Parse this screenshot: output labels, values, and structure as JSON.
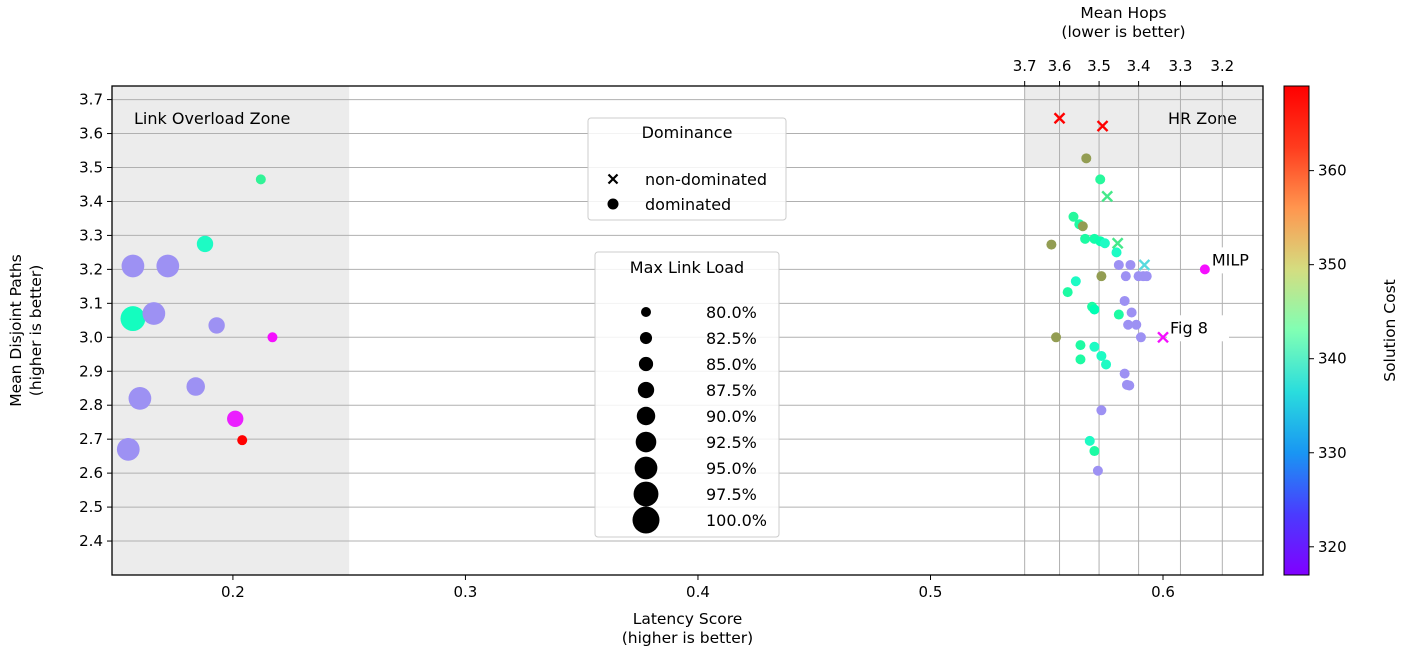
{
  "chart_data": {
    "type": "scatter",
    "xlabel": [
      "Latency Score",
      "(higher is better)"
    ],
    "ylabel": [
      "Mean Disjoint Paths",
      "(higher is better)"
    ],
    "top_axis_label": [
      "Mean Hops",
      "(lower is better)"
    ],
    "colorbar_label": "Solution Cost",
    "xlim": [
      0.148,
      0.643
    ],
    "ylim": [
      2.3,
      3.74
    ],
    "x_ticks": [
      "0.2",
      "0.3",
      "0.4",
      "0.5",
      "0.6"
    ],
    "x_tick_values": [
      0.2,
      0.3,
      0.4,
      0.5,
      0.6
    ],
    "y_ticks": [
      "2.4",
      "2.5",
      "2.6",
      "2.7",
      "2.8",
      "2.9",
      "3.0",
      "3.1",
      "3.2",
      "3.3",
      "3.4",
      "3.5",
      "3.6",
      "3.7"
    ],
    "y_tick_values": [
      2.4,
      2.5,
      2.6,
      2.7,
      2.8,
      2.9,
      3.0,
      3.1,
      3.2,
      3.3,
      3.4,
      3.5,
      3.6,
      3.7
    ],
    "top_ticks": [
      "3.7",
      "3.6",
      "3.5",
      "3.4",
      "3.3",
      "3.2"
    ],
    "top_tick_latency_positions": [
      0.5405,
      0.5555,
      0.5725,
      0.5895,
      0.6075,
      0.6255
    ],
    "colorbar_ticks": [
      "320",
      "330",
      "340",
      "350",
      "360"
    ],
    "colorbar_tick_values": [
      320,
      330,
      340,
      350,
      360
    ],
    "colorbar_range": [
      317,
      369
    ],
    "grid": true,
    "regions": [
      {
        "label": "Link Overload Zone",
        "x_range": [
          0.148,
          0.25
        ],
        "y_range": [
          2.3,
          3.74
        ]
      },
      {
        "label": "HR Zone",
        "x_range": [
          0.5405,
          0.643
        ],
        "y_range": [
          3.5,
          3.74
        ]
      }
    ],
    "dominance_legend": {
      "title": "Dominance",
      "entries": [
        {
          "label": "non-dominated",
          "marker": "x"
        },
        {
          "label": "dominated",
          "marker": "o"
        }
      ]
    },
    "size_legend": {
      "title": "Max Link Load",
      "entries": [
        "80.0%",
        "82.5%",
        "85.0%",
        "87.5%",
        "90.0%",
        "92.5%",
        "95.0%",
        "97.5%",
        "100.0%"
      ],
      "values": [
        80.0,
        82.5,
        85.0,
        87.5,
        90.0,
        92.5,
        95.0,
        97.5,
        100.0
      ]
    },
    "annotations": [
      {
        "label": "MILP",
        "x": 0.618,
        "y": 3.2
      },
      {
        "label": "Fig 8",
        "x": 0.6,
        "y": 3.0
      }
    ],
    "points": [
      {
        "x": 0.212,
        "y": 3.465,
        "cost": 348,
        "load": 80,
        "marker": "o"
      },
      {
        "x": 0.188,
        "y": 3.275,
        "cost": 340,
        "load": 87.5,
        "marker": "o"
      },
      {
        "x": 0.157,
        "y": 3.21,
        "cost": 327,
        "load": 95,
        "marker": "o"
      },
      {
        "x": 0.172,
        "y": 3.21,
        "cost": 327,
        "load": 95,
        "marker": "o"
      },
      {
        "x": 0.166,
        "y": 3.07,
        "cost": 327,
        "load": 95,
        "marker": "o"
      },
      {
        "x": 0.157,
        "y": 3.055,
        "cost": 341,
        "load": 97.5,
        "marker": "o"
      },
      {
        "x": 0.193,
        "y": 3.035,
        "cost": 327,
        "load": 87.5,
        "marker": "o"
      },
      {
        "x": 0.217,
        "y": 3.0,
        "cost": 318,
        "load": 80,
        "marker": "o"
      },
      {
        "x": 0.184,
        "y": 2.855,
        "cost": 327,
        "load": 90,
        "marker": "o"
      },
      {
        "x": 0.16,
        "y": 2.82,
        "cost": 327,
        "load": 95,
        "marker": "o"
      },
      {
        "x": 0.201,
        "y": 2.76,
        "cost": 319,
        "load": 87.5,
        "marker": "o"
      },
      {
        "x": 0.204,
        "y": 2.697,
        "cost": 369,
        "load": 80,
        "marker": "o"
      },
      {
        "x": 0.155,
        "y": 2.67,
        "cost": 327,
        "load": 95,
        "marker": "o"
      },
      {
        "x": 0.5555,
        "y": 3.645,
        "cost": 369,
        "load": 80,
        "marker": "x"
      },
      {
        "x": 0.574,
        "y": 3.622,
        "cost": 369,
        "load": 80,
        "marker": "x"
      },
      {
        "x": 0.567,
        "y": 3.527,
        "cost": 358,
        "load": 80,
        "marker": "o"
      },
      {
        "x": 0.573,
        "y": 3.465,
        "cost": 347,
        "load": 80,
        "marker": "o"
      },
      {
        "x": 0.576,
        "y": 3.415,
        "cost": 350,
        "load": 80,
        "marker": "x"
      },
      {
        "x": 0.5615,
        "y": 3.355,
        "cost": 347,
        "load": 80,
        "marker": "o"
      },
      {
        "x": 0.564,
        "y": 3.333,
        "cost": 346,
        "load": 80,
        "marker": "o"
      },
      {
        "x": 0.5655,
        "y": 3.327,
        "cost": 358,
        "load": 80,
        "marker": "o"
      },
      {
        "x": 0.5665,
        "y": 3.29,
        "cost": 346,
        "load": 80,
        "marker": "o"
      },
      {
        "x": 0.5705,
        "y": 3.29,
        "cost": 345,
        "load": 80,
        "marker": "o"
      },
      {
        "x": 0.573,
        "y": 3.283,
        "cost": 344,
        "load": 80,
        "marker": "o"
      },
      {
        "x": 0.575,
        "y": 3.277,
        "cost": 340,
        "load": 80,
        "marker": "o"
      },
      {
        "x": 0.5805,
        "y": 3.277,
        "cost": 350,
        "load": 80,
        "marker": "x"
      },
      {
        "x": 0.552,
        "y": 3.273,
        "cost": 358,
        "load": 80,
        "marker": "o"
      },
      {
        "x": 0.58,
        "y": 3.25,
        "cost": 340,
        "load": 80,
        "marker": "o"
      },
      {
        "x": 0.592,
        "y": 3.213,
        "cost": 334,
        "load": 80,
        "marker": "x"
      },
      {
        "x": 0.581,
        "y": 3.213,
        "cost": 327,
        "load": 80,
        "marker": "o"
      },
      {
        "x": 0.586,
        "y": 3.213,
        "cost": 327,
        "load": 80,
        "marker": "o"
      },
      {
        "x": 0.618,
        "y": 3.2,
        "cost": 318,
        "load": 80,
        "marker": "o"
      },
      {
        "x": 0.584,
        "y": 3.18,
        "cost": 327,
        "load": 80,
        "marker": "o"
      },
      {
        "x": 0.5735,
        "y": 3.18,
        "cost": 358,
        "load": 80,
        "marker": "o"
      },
      {
        "x": 0.5895,
        "y": 3.18,
        "cost": 327,
        "load": 80,
        "marker": "o"
      },
      {
        "x": 0.5915,
        "y": 3.18,
        "cost": 327,
        "load": 80,
        "marker": "o"
      },
      {
        "x": 0.593,
        "y": 3.18,
        "cost": 327,
        "load": 80,
        "marker": "o"
      },
      {
        "x": 0.5625,
        "y": 3.165,
        "cost": 340,
        "load": 80,
        "marker": "o"
      },
      {
        "x": 0.559,
        "y": 3.133,
        "cost": 346,
        "load": 80,
        "marker": "o"
      },
      {
        "x": 0.5835,
        "y": 3.107,
        "cost": 327,
        "load": 80,
        "marker": "o"
      },
      {
        "x": 0.5695,
        "y": 3.09,
        "cost": 346,
        "load": 80,
        "marker": "o"
      },
      {
        "x": 0.5705,
        "y": 3.082,
        "cost": 343,
        "load": 80,
        "marker": "o"
      },
      {
        "x": 0.5865,
        "y": 3.073,
        "cost": 327,
        "load": 80,
        "marker": "o"
      },
      {
        "x": 0.581,
        "y": 3.067,
        "cost": 346,
        "load": 80,
        "marker": "o"
      },
      {
        "x": 0.585,
        "y": 3.037,
        "cost": 327,
        "load": 80,
        "marker": "o"
      },
      {
        "x": 0.5885,
        "y": 3.037,
        "cost": 327,
        "load": 80,
        "marker": "o"
      },
      {
        "x": 0.5905,
        "y": 3.0,
        "cost": 327,
        "load": 80,
        "marker": "o"
      },
      {
        "x": 0.554,
        "y": 3.0,
        "cost": 358,
        "load": 80,
        "marker": "o"
      },
      {
        "x": 0.6,
        "y": 3.0,
        "cost": 318,
        "load": 80,
        "marker": "x"
      },
      {
        "x": 0.5645,
        "y": 2.977,
        "cost": 346,
        "load": 80,
        "marker": "o"
      },
      {
        "x": 0.5705,
        "y": 2.972,
        "cost": 340,
        "load": 80,
        "marker": "o"
      },
      {
        "x": 0.5735,
        "y": 2.945,
        "cost": 340,
        "load": 80,
        "marker": "o"
      },
      {
        "x": 0.5645,
        "y": 2.935,
        "cost": 346,
        "load": 80,
        "marker": "o"
      },
      {
        "x": 0.5755,
        "y": 2.92,
        "cost": 340,
        "load": 80,
        "marker": "o"
      },
      {
        "x": 0.5835,
        "y": 2.893,
        "cost": 327,
        "load": 80,
        "marker": "o"
      },
      {
        "x": 0.5845,
        "y": 2.86,
        "cost": 327,
        "load": 80,
        "marker": "o"
      },
      {
        "x": 0.5855,
        "y": 2.858,
        "cost": 327,
        "load": 80,
        "marker": "o"
      },
      {
        "x": 0.5735,
        "y": 2.785,
        "cost": 327,
        "load": 80,
        "marker": "o"
      },
      {
        "x": 0.5685,
        "y": 2.695,
        "cost": 340,
        "load": 80,
        "marker": "o"
      },
      {
        "x": 0.5705,
        "y": 2.665,
        "cost": 346,
        "load": 80,
        "marker": "o"
      },
      {
        "x": 0.572,
        "y": 2.607,
        "cost": 327,
        "load": 80,
        "marker": "o"
      }
    ]
  }
}
